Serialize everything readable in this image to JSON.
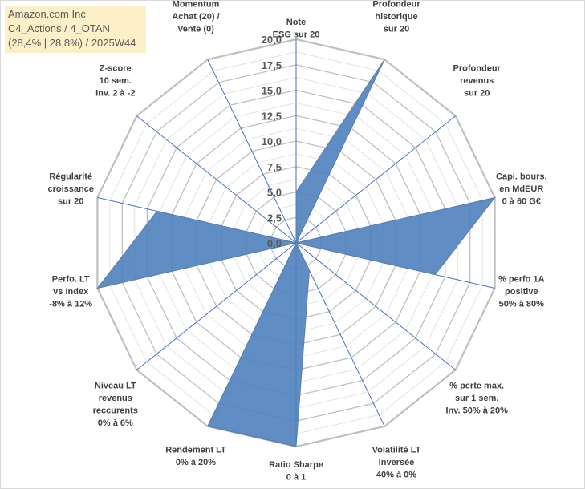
{
  "title_box": {
    "line1": "Amazon.com Inc",
    "line2": "C4_Actions / 4_OTAN",
    "line3": "(28,4% | 28,8%) / 2025W44"
  },
  "chart_data": {
    "type": "radar",
    "title": "Amazon.com Inc",
    "rmin": 0,
    "rmax": 20,
    "tick_step": 2.5,
    "ticks": [
      "0,0",
      "2,5",
      "5,0",
      "7,5",
      "10,0",
      "12,5",
      "15,0",
      "17,5",
      "20,0"
    ],
    "axes": [
      [
        "Note",
        "ESG sur 20"
      ],
      [
        "Profondeur",
        "historique",
        "sur 20"
      ],
      [
        "Profondeur",
        "revenus",
        "sur 20"
      ],
      [
        "Capi. bours.",
        "en MdEUR",
        "0 à 60 G€"
      ],
      [
        "% perfo 1A",
        "positive",
        "50% à 80%"
      ],
      [
        "% perte max.",
        "sur 1 sem.",
        "Inv. 50% à 20%"
      ],
      [
        "Volatilité LT",
        "Inversée",
        "40% à 0%"
      ],
      [
        "Ratio Sharpe",
        "0 à 1"
      ],
      [
        "Rendement LT",
        "0% à 20%"
      ],
      [
        "Niveau LT",
        "revenus",
        "reccurents",
        "0% à 6%"
      ],
      [
        "Perfo. LT",
        "vs Index",
        "-8% à 12%"
      ],
      [
        "Régularité",
        "croissance",
        "sur 20"
      ],
      [
        "Z-score",
        "10 sem.",
        "Inv. 2 à -2"
      ],
      [
        "Momentum",
        "Achat (20) /",
        "Vente (0)"
      ]
    ],
    "series": [
      {
        "name": "Amazon.com Inc",
        "color": "#4f81bd",
        "values": [
          5,
          20,
          0,
          20,
          14,
          0,
          3,
          20,
          20,
          0,
          20,
          14,
          0,
          0
        ]
      }
    ]
  }
}
